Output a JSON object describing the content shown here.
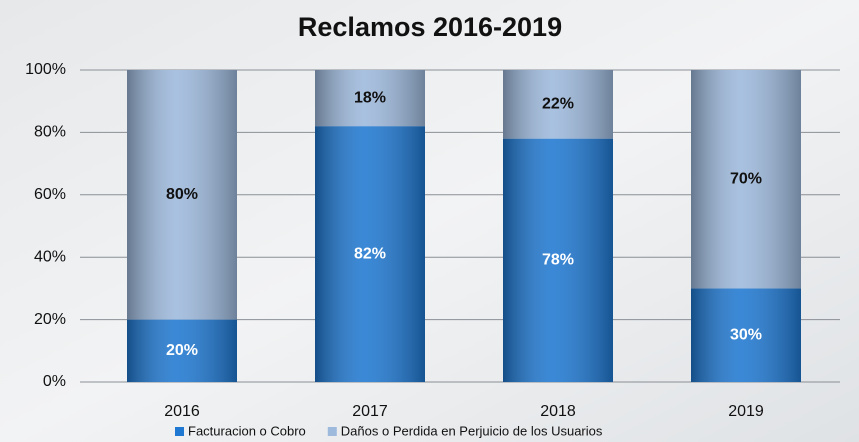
{
  "chart_data": {
    "type": "stacked_bar",
    "title": "Reclamos 2016-2019",
    "categories": [
      "2016",
      "2017",
      "2018",
      "2019"
    ],
    "series": [
      {
        "name": "Facturacion o Cobro",
        "color": "#1f78d1",
        "values": [
          20,
          82,
          78,
          30
        ],
        "value_labels": [
          "20%",
          "82%",
          "78%",
          "30%"
        ]
      },
      {
        "name": "Daños o Perdida en Perjuicio de los Usuarios",
        "color": "#9db9dc",
        "values": [
          80,
          18,
          22,
          70
        ],
        "value_labels": [
          "80%",
          "18%",
          "22%",
          "70%"
        ]
      }
    ],
    "ylim": [
      0,
      100
    ],
    "yticks": [
      {
        "value": 0,
        "label": "0%"
      },
      {
        "value": 20,
        "label": "20%"
      },
      {
        "value": 40,
        "label": "40%"
      },
      {
        "value": 60,
        "label": "60%"
      },
      {
        "value": 80,
        "label": "80%"
      },
      {
        "value": 100,
        "label": "100%"
      }
    ],
    "grid": true,
    "legend": "bottom"
  }
}
